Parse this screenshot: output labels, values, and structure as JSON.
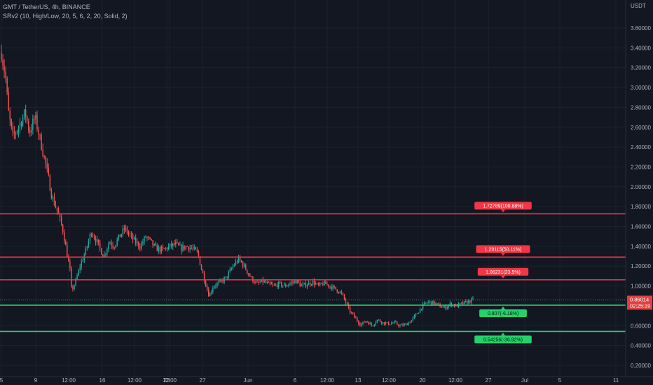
{
  "header": {
    "symbol_line": "GMT / TetherUS, 4h, BINANCE",
    "indicator_line": "SRv2 (10, High/Low, 20, 5, 6, 2, 20, Solid, 2)"
  },
  "chart_data": {
    "type": "candlestick",
    "symbol": "GMT / TetherUS",
    "interval": "4h",
    "exchange": "BINANCE",
    "currency_label": "USDT",
    "y_ticks": [
      "3.60000",
      "3.40000",
      "3.20000",
      "3.00000",
      "2.80000",
      "2.60000",
      "2.40000",
      "2.20000",
      "2.00000",
      "1.80000",
      "1.60000",
      "1.40000",
      "1.20000",
      "1.00000",
      "0.80000",
      "0.60000",
      "0.40000",
      "0.20000"
    ],
    "x_ticks": [
      "5",
      "9",
      "12:00",
      "16",
      "12:00",
      "23",
      "12:00",
      "27",
      "Jun",
      "6",
      "12:00",
      "13",
      "12:00",
      "20",
      "12:00",
      "27",
      "Jul",
      "5",
      "11"
    ],
    "ylim": [
      0.12,
      3.88
    ],
    "grid": true,
    "current_price": "0.86014",
    "countdown": "02:25:19",
    "price_path": [
      {
        "t": 0,
        "price": 3.35
      },
      {
        "t": 0.03,
        "price": 3.1
      },
      {
        "t": 0.05,
        "price": 2.75
      },
      {
        "t": 0.08,
        "price": 2.5
      },
      {
        "t": 0.12,
        "price": 2.6
      },
      {
        "t": 0.17,
        "price": 2.75
      },
      {
        "t": 0.2,
        "price": 2.55
      },
      {
        "t": 0.24,
        "price": 2.7
      },
      {
        "t": 0.28,
        "price": 2.45
      },
      {
        "t": 0.32,
        "price": 2.2
      },
      {
        "t": 0.36,
        "price": 1.9
      },
      {
        "t": 0.4,
        "price": 1.75
      },
      {
        "t": 0.44,
        "price": 1.55
      },
      {
        "t": 0.47,
        "price": 1.3
      },
      {
        "t": 0.49,
        "price": 1.15
      },
      {
        "t": 0.5,
        "price": 0.95
      },
      {
        "t": 0.53,
        "price": 1.05
      },
      {
        "t": 0.56,
        "price": 1.2
      },
      {
        "t": 0.6,
        "price": 1.35
      },
      {
        "t": 0.64,
        "price": 1.55
      },
      {
        "t": 0.68,
        "price": 1.45
      },
      {
        "t": 0.7,
        "price": 1.38
      },
      {
        "t": 0.73,
        "price": 1.3
      },
      {
        "t": 0.77,
        "price": 1.45
      },
      {
        "t": 0.8,
        "price": 1.4
      },
      {
        "t": 0.85,
        "price": 1.52
      },
      {
        "t": 0.88,
        "price": 1.58
      },
      {
        "t": 0.92,
        "price": 1.5
      },
      {
        "t": 0.95,
        "price": 1.45
      },
      {
        "t": 0.99,
        "price": 1.4
      },
      {
        "t": 1.03,
        "price": 1.5
      },
      {
        "t": 1.06,
        "price": 1.45
      },
      {
        "t": 1.1,
        "price": 1.38
      },
      {
        "t": 1.15,
        "price": 1.36
      },
      {
        "t": 1.2,
        "price": 1.4
      },
      {
        "t": 1.24,
        "price": 1.42
      },
      {
        "t": 1.28,
        "price": 1.38
      },
      {
        "t": 1.32,
        "price": 1.4
      },
      {
        "t": 1.36,
        "price": 1.38
      },
      {
        "t": 1.4,
        "price": 1.33
      },
      {
        "t": 1.42,
        "price": 1.2
      },
      {
        "t": 1.45,
        "price": 1.05
      },
      {
        "t": 1.48,
        "price": 0.9
      },
      {
        "t": 1.51,
        "price": 1.0
      },
      {
        "t": 1.55,
        "price": 1.03
      },
      {
        "t": 1.6,
        "price": 1.08
      },
      {
        "t": 1.63,
        "price": 1.15
      },
      {
        "t": 1.66,
        "price": 1.22
      },
      {
        "t": 1.69,
        "price": 1.27
      },
      {
        "t": 1.72,
        "price": 1.22
      },
      {
        "t": 1.75,
        "price": 1.15
      },
      {
        "t": 1.78,
        "price": 1.08
      },
      {
        "t": 1.82,
        "price": 1.02
      },
      {
        "t": 1.86,
        "price": 1.05
      },
      {
        "t": 1.9,
        "price": 1.02
      },
      {
        "t": 1.94,
        "price": 1.0
      },
      {
        "t": 1.98,
        "price": 1.02
      },
      {
        "t": 2.02,
        "price": 1.0
      },
      {
        "t": 2.06,
        "price": 1.03
      },
      {
        "t": 2.1,
        "price": 1.05
      },
      {
        "t": 2.14,
        "price": 1.0
      },
      {
        "t": 2.18,
        "price": 1.02
      },
      {
        "t": 2.22,
        "price": 1.04
      },
      {
        "t": 2.26,
        "price": 1.0
      },
      {
        "t": 2.3,
        "price": 1.03
      },
      {
        "t": 2.34,
        "price": 1.0
      },
      {
        "t": 2.38,
        "price": 0.97
      },
      {
        "t": 2.42,
        "price": 0.93
      },
      {
        "t": 2.45,
        "price": 0.85
      },
      {
        "t": 2.48,
        "price": 0.75
      },
      {
        "t": 2.52,
        "price": 0.68
      },
      {
        "t": 2.56,
        "price": 0.61
      },
      {
        "t": 2.6,
        "price": 0.65
      },
      {
        "t": 2.64,
        "price": 0.6
      },
      {
        "t": 2.68,
        "price": 0.66
      },
      {
        "t": 2.72,
        "price": 0.63
      },
      {
        "t": 2.76,
        "price": 0.62
      },
      {
        "t": 2.8,
        "price": 0.63
      },
      {
        "t": 2.84,
        "price": 0.6
      },
      {
        "t": 2.88,
        "price": 0.61
      },
      {
        "t": 2.92,
        "price": 0.65
      },
      {
        "t": 2.96,
        "price": 0.72
      },
      {
        "t": 3.0,
        "price": 0.8
      },
      {
        "t": 3.04,
        "price": 0.84
      },
      {
        "t": 3.08,
        "price": 0.83
      },
      {
        "t": 3.12,
        "price": 0.8
      },
      {
        "t": 3.16,
        "price": 0.78
      },
      {
        "t": 3.2,
        "price": 0.82
      },
      {
        "t": 3.24,
        "price": 0.8
      },
      {
        "t": 3.28,
        "price": 0.82
      },
      {
        "t": 3.32,
        "price": 0.84
      },
      {
        "t": 3.36,
        "price": 0.86
      }
    ],
    "levels": [
      {
        "value": 1.72789,
        "label": "1.72789(100.88%)",
        "kind": "resistance",
        "color": "#f23645"
      },
      {
        "value": 1.29115,
        "label": "1.29115(50.11%)",
        "kind": "resistance",
        "color": "#f23645"
      },
      {
        "value": 1.06231,
        "label": "1.06231(23.5%)",
        "kind": "resistance",
        "color": "#f23645"
      },
      {
        "value": 0.807,
        "label": "0.807(-6.18%)",
        "kind": "support",
        "color": "#22d36a"
      },
      {
        "value": 0.54256,
        "label": "0.54256(-36.92%)",
        "kind": "support",
        "color": "#22d36a"
      }
    ],
    "colors": {
      "background": "#131722",
      "grid": "#1e222d",
      "up": "#26a69a",
      "down": "#ef5350",
      "text": "#b2b5be"
    }
  }
}
